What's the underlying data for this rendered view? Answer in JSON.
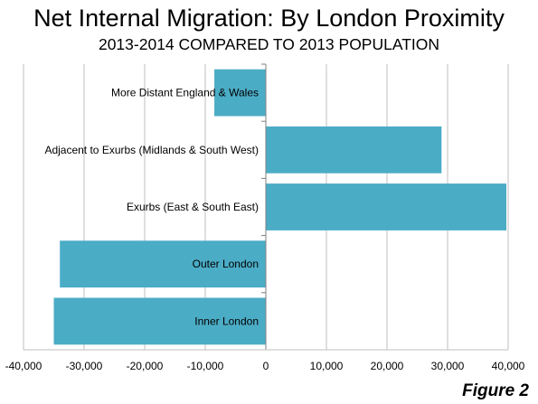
{
  "chart_data": {
    "type": "bar",
    "orientation": "horizontal",
    "title": "Net Internal Migration: By London Proximity",
    "subtitle": "2013-2014 COMPARED TO 2013 POPULATION",
    "categories": [
      "More Distant England & Wales",
      "Adjacent to Exurbs (Midlands & South West)",
      "Exurbs (East & South East)",
      "Outer London",
      "Inner London"
    ],
    "values": [
      -8500,
      29000,
      39700,
      -34000,
      -35000
    ],
    "xlim": [
      -40000,
      40000
    ],
    "xticks": [
      -40000,
      -30000,
      -20000,
      -10000,
      0,
      10000,
      20000,
      30000,
      40000
    ],
    "xtick_labels": [
      "-40,000",
      "-30,000",
      "-20,000",
      "-10,000",
      "0",
      "10,000",
      "20,000",
      "30,000",
      "40,000"
    ],
    "grid": "vertical",
    "bar_color": "#4BACC6",
    "legend": "none"
  },
  "figure_label": "Figure 2"
}
